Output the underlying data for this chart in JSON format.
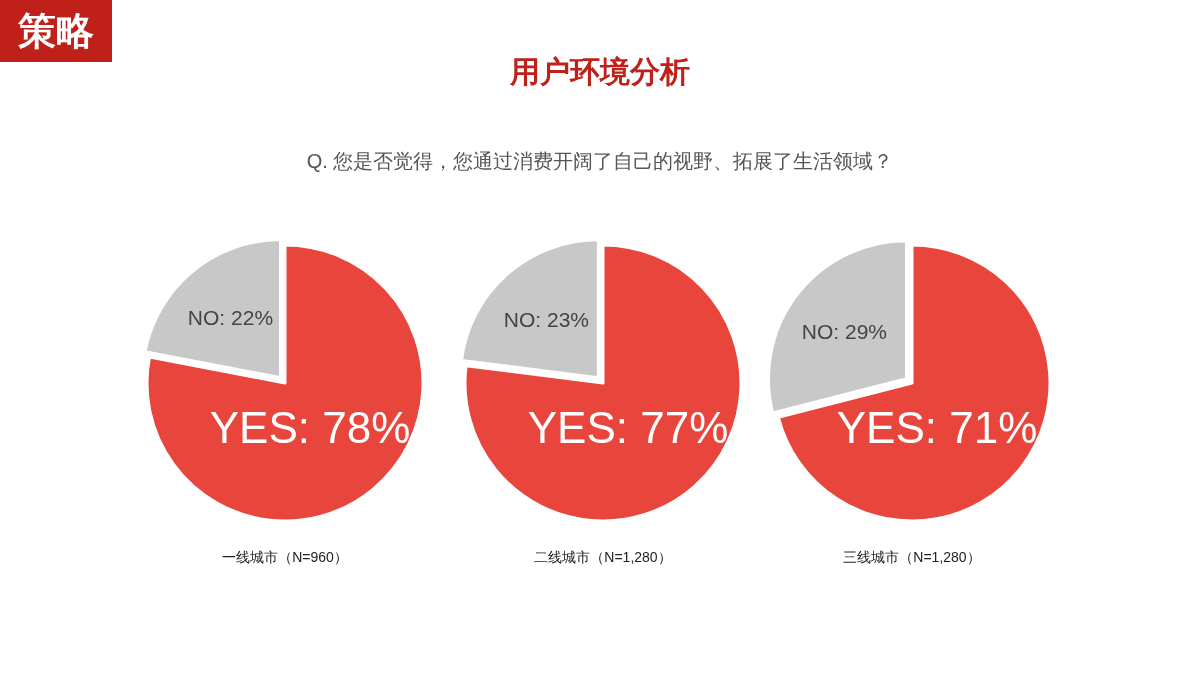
{
  "chart_data": [
    {
      "type": "pie",
      "annotations": [
        "策略"
      ],
      "xlabel": "一线城市（N=960）",
      "categories": [
        "YES",
        "NO"
      ],
      "values": [
        78,
        22
      ],
      "value_labels": [
        "78%",
        "22%"
      ],
      "colors": [
        "#e8453c",
        "#c8c8c8"
      ]
    },
    {
      "type": "pie",
      "title": "用户环境分析",
      "subtitle": "Q. 您是否觉得，您通过消费开阔了自己的视野、拓展了生活领域？",
      "xlabel": "二线城市（N=1,280）",
      "categories": [
        "YES",
        "NO"
      ],
      "values": [
        77,
        23
      ],
      "value_labels": [
        "77%",
        "23%"
      ],
      "colors": [
        "#e8453c",
        "#c8c8c8"
      ]
    },
    {
      "type": "pie",
      "xlabel": "三线城市（N=1,280）",
      "categories": [
        "YES",
        "NO"
      ],
      "values": [
        71,
        29
      ],
      "value_labels": [
        "71%",
        "29%"
      ],
      "colors": [
        "#e8453c",
        "#c8c8c8"
      ]
    }
  ]
}
